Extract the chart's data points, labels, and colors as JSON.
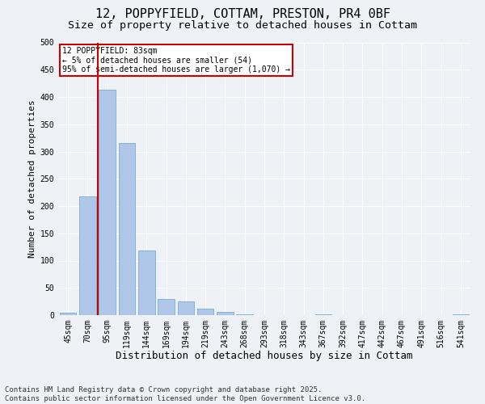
{
  "title": "12, POPPYFIELD, COTTAM, PRESTON, PR4 0BF",
  "subtitle": "Size of property relative to detached houses in Cottam",
  "xlabel": "Distribution of detached houses by size in Cottam",
  "ylabel": "Number of detached properties",
  "categories": [
    "45sqm",
    "70sqm",
    "95sqm",
    "119sqm",
    "144sqm",
    "169sqm",
    "194sqm",
    "219sqm",
    "243sqm",
    "268sqm",
    "293sqm",
    "318sqm",
    "343sqm",
    "367sqm",
    "392sqm",
    "417sqm",
    "442sqm",
    "467sqm",
    "491sqm",
    "516sqm",
    "541sqm"
  ],
  "values": [
    5,
    218,
    413,
    315,
    118,
    30,
    25,
    12,
    6,
    1,
    0,
    0,
    0,
    1,
    0,
    0,
    0,
    0,
    0,
    0,
    2
  ],
  "bar_color": "#aec6e8",
  "bar_edge_color": "#7aadd4",
  "vline_color": "#cc0000",
  "annotation_text": "12 POPPYFIELD: 83sqm\n← 5% of detached houses are smaller (54)\n95% of semi-detached houses are larger (1,070) →",
  "annotation_box_color": "#ffffff",
  "annotation_box_edge": "#cc0000",
  "ylim": [
    0,
    500
  ],
  "yticks": [
    0,
    50,
    100,
    150,
    200,
    250,
    300,
    350,
    400,
    450,
    500
  ],
  "background_color": "#eef2f7",
  "grid_color": "#ffffff",
  "footer": "Contains HM Land Registry data © Crown copyright and database right 2025.\nContains public sector information licensed under the Open Government Licence v3.0.",
  "title_fontsize": 11,
  "subtitle_fontsize": 9.5,
  "xlabel_fontsize": 9,
  "ylabel_fontsize": 8,
  "tick_fontsize": 7,
  "footer_fontsize": 6.5,
  "vline_pos": 1.5
}
